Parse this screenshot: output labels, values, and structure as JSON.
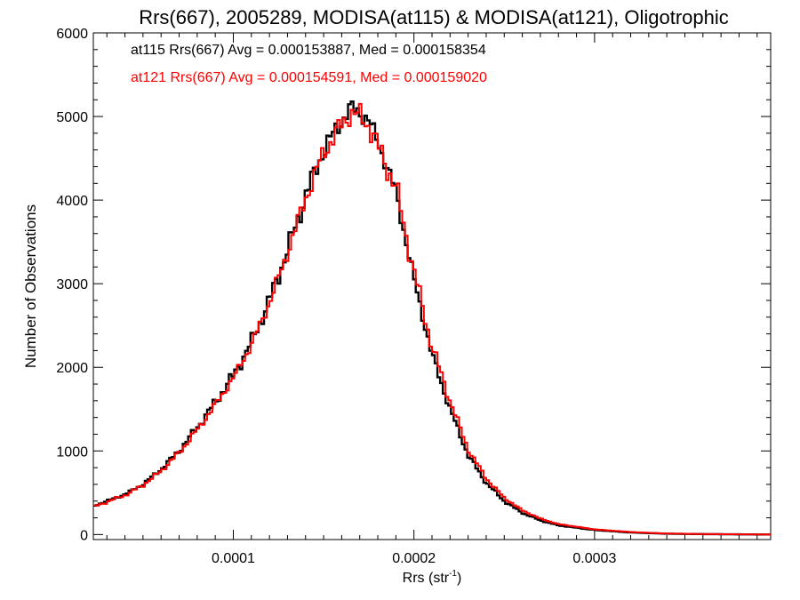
{
  "chart_data": {
    "type": "line",
    "title": "Rrs(667), 2005289, MODISA(at115) & MODISA(at121), Oligotrophic",
    "xlabel_main": "Rrs (str",
    "xlabel_sup": "-1",
    "xlabel_close": ")",
    "ylabel": "Number of Observations",
    "xlim": [
      2.25e-05,
      0.0003975
    ],
    "ylim": [
      -60,
      6000
    ],
    "xticks": [
      0.0001,
      0.0002,
      0.0003
    ],
    "xtick_labels": [
      "0.0001",
      "0.0002",
      "0.0003"
    ],
    "yticks": [
      0,
      1000,
      2000,
      3000,
      4000,
      5000,
      6000
    ],
    "ytick_labels": [
      "0",
      "1000",
      "2000",
      "3000",
      "4000",
      "5000",
      "6000"
    ],
    "grid": false,
    "legend_position": "top-left",
    "series": [
      {
        "name": "at115 Rrs(667) Avg = 0.000153887, Med = 0.000158354",
        "color": "#000000",
        "x": [
          2.25e-05,
          3e-05,
          4e-05,
          5e-05,
          6e-05,
          7e-05,
          8e-05,
          9e-05,
          0.0001,
          0.00011,
          0.00012,
          0.00013,
          0.00014,
          0.00015,
          0.00016,
          0.000165,
          0.00017,
          0.000175,
          0.00018,
          0.00019,
          0.0002,
          0.00021,
          0.00022,
          0.00023,
          0.00024,
          0.00025,
          0.00026,
          0.00027,
          0.00028,
          0.0003,
          0.00032,
          0.00034,
          0.00036,
          0.0003975
        ],
        "y": [
          340,
          400,
          480,
          600,
          780,
          1000,
          1280,
          1580,
          1900,
          2300,
          2800,
          3400,
          4050,
          4600,
          4950,
          5100,
          5050,
          4950,
          4700,
          4100,
          3050,
          2150,
          1500,
          950,
          620,
          400,
          260,
          170,
          110,
          55,
          25,
          10,
          5,
          0
        ]
      },
      {
        "name": "at121 Rrs(667) Avg = 0.000154591, Med = 0.000159020",
        "color": "#ff0000",
        "x": [
          2.25e-05,
          3e-05,
          4e-05,
          5e-05,
          6e-05,
          7e-05,
          8e-05,
          9e-05,
          0.0001,
          0.00011,
          0.00012,
          0.00013,
          0.00014,
          0.00015,
          0.00016,
          0.000165,
          0.00017,
          0.000175,
          0.00018,
          0.00019,
          0.0002,
          0.00021,
          0.00022,
          0.00023,
          0.00024,
          0.00025,
          0.00026,
          0.00027,
          0.00028,
          0.0003,
          0.00032,
          0.00034,
          0.00036,
          0.0003975
        ],
        "y": [
          330,
          390,
          470,
          590,
          760,
          980,
          1250,
          1550,
          1870,
          2270,
          2770,
          3370,
          4020,
          4570,
          4900,
          5050,
          5000,
          4900,
          4650,
          4150,
          3150,
          2250,
          1600,
          1020,
          670,
          440,
          290,
          190,
          125,
          62,
          30,
          12,
          6,
          0
        ]
      }
    ]
  }
}
